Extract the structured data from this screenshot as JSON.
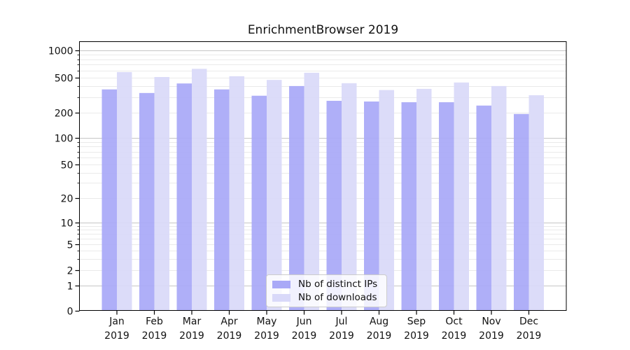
{
  "figure": {
    "background": "#ffffff"
  },
  "chart_data": {
    "type": "bar",
    "title": "EnrichmentBrowser 2019",
    "categories": [
      "Jan 2019",
      "Feb 2019",
      "Mar 2019",
      "Apr 2019",
      "May 2019",
      "Jun 2019",
      "Jul 2019",
      "Aug 2019",
      "Sep 2019",
      "Oct 2019",
      "Nov 2019",
      "Dec 2019"
    ],
    "series": [
      {
        "name": "Nb of distinct IPs",
        "color": "#a9a9f7",
        "values": [
          368,
          335,
          430,
          368,
          312,
          402,
          273,
          268,
          263,
          263,
          241,
          193
        ]
      },
      {
        "name": "Nb of downloads",
        "color": "#d9d9f9",
        "values": [
          577,
          509,
          626,
          519,
          472,
          567,
          433,
          362,
          373,
          441,
          402,
          316
        ]
      }
    ],
    "xlabel": "",
    "ylabel": "",
    "yscale": "symlog (log above 1, linear 0-1, 0 at baseline)",
    "ylim": [
      0,
      1200
    ],
    "y_tick_labels": [
      0,
      1,
      2,
      5,
      10,
      20,
      50,
      100,
      200,
      500,
      1000
    ],
    "y_major_gridlines": [
      1,
      10,
      100,
      1000
    ],
    "y_minor_gridlines": [
      2,
      3,
      4,
      5,
      6,
      7,
      8,
      9,
      20,
      30,
      40,
      50,
      60,
      70,
      80,
      90,
      200,
      300,
      400,
      500,
      600,
      700,
      800,
      900
    ],
    "grid": true,
    "legend_position": "lower center",
    "colors": {
      "major_grid": "#c6c6c6",
      "minor_grid": "#eaeaea",
      "axis": "#000000",
      "tick_text": "#111111"
    }
  }
}
